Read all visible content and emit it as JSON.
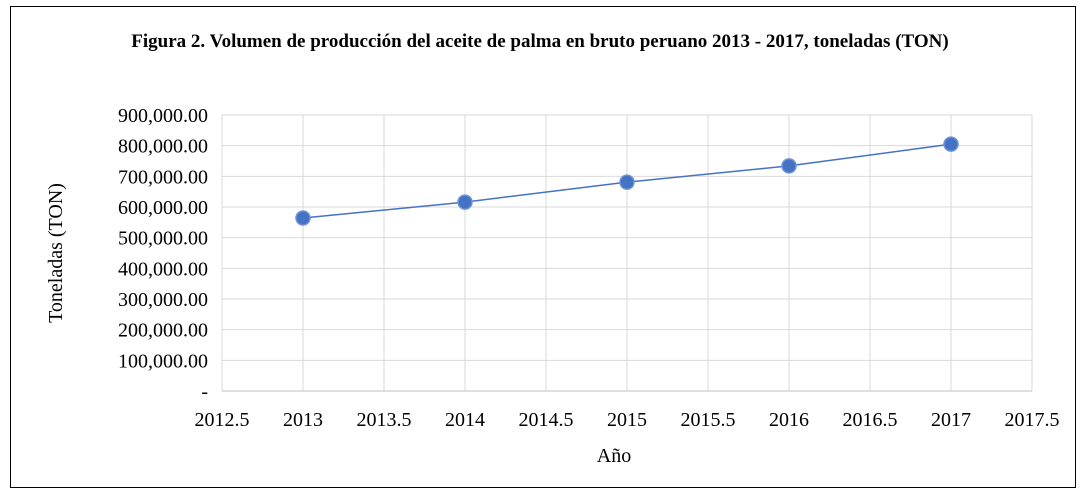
{
  "chart_data": {
    "type": "line",
    "title": "Figura 2. Volumen de producción del aceite de palma en bruto peruano 2013 - 2017, toneladas (TON)",
    "x_label": "Año",
    "y_label": "Toneladas  (TON)",
    "x": [
      2013,
      2014,
      2015,
      2016,
      2017
    ],
    "values": [
      564000,
      616000,
      681000,
      734000,
      805000
    ],
    "color": "#4472c4",
    "xlim": [
      2012.5,
      2017.5
    ],
    "xticks": [
      2012.5,
      2013,
      2013.5,
      2014,
      2014.5,
      2015,
      2015.5,
      2016,
      2016.5,
      2017,
      2017.5
    ],
    "ylim": [
      0,
      900000
    ],
    "yticks": [
      {
        "value": 0,
        "label": "-"
      },
      {
        "value": 100000,
        "label": "100,000.00"
      },
      {
        "value": 200000,
        "label": "200,000.00"
      },
      {
        "value": 300000,
        "label": "300,000.00"
      },
      {
        "value": 400000,
        "label": "400,000.00"
      },
      {
        "value": 500000,
        "label": "500,000.00"
      },
      {
        "value": 600000,
        "label": "600,000.00"
      },
      {
        "value": 700000,
        "label": "700,000.00"
      },
      {
        "value": 800000,
        "label": "800,000.00"
      },
      {
        "value": 900000,
        "label": "900,000.00"
      }
    ],
    "grid": true
  }
}
